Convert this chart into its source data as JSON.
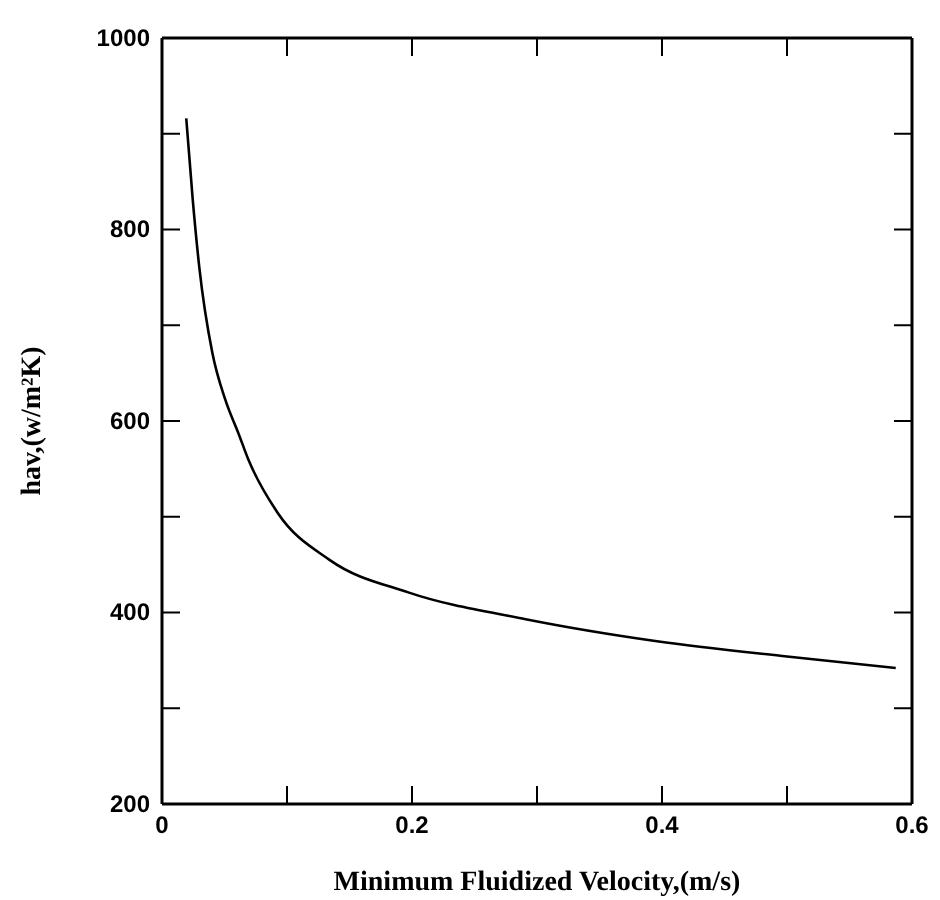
{
  "chart_data": {
    "type": "line",
    "xlabel": "Minimum Fluidized Velocity,(m/s)",
    "ylabel": "hav,(w/m²K)",
    "x": [
      0.0194,
      0.0246,
      0.0298,
      0.0403,
      0.0507,
      0.0612,
      0.069,
      0.0926,
      0.134,
      0.197,
      0.291,
      0.396,
      0.5,
      0.587
    ],
    "series": [
      {
        "color": "#000000",
        "values": [
          916,
          831,
          761,
          671,
          622,
          587,
          560,
          504,
          455,
          421,
          393,
          370,
          354,
          342
        ]
      }
    ],
    "xlim": [
      0,
      0.6
    ],
    "ylim": [
      200,
      1000
    ],
    "xticks": [
      0,
      {
        "value": 0.1,
        "label": null
      },
      0.2,
      {
        "value": 0.3,
        "label": null
      },
      0.4,
      {
        "value": 0.5,
        "label": null
      },
      0.6
    ],
    "yticks": [
      200,
      {
        "value": 300,
        "label": null
      },
      400,
      {
        "value": 500,
        "label": null
      },
      600,
      {
        "value": 700,
        "label": null
      },
      800,
      {
        "value": 900,
        "label": null
      },
      1000
    ],
    "grid": false,
    "marker": "none",
    "line_style": "solid"
  }
}
